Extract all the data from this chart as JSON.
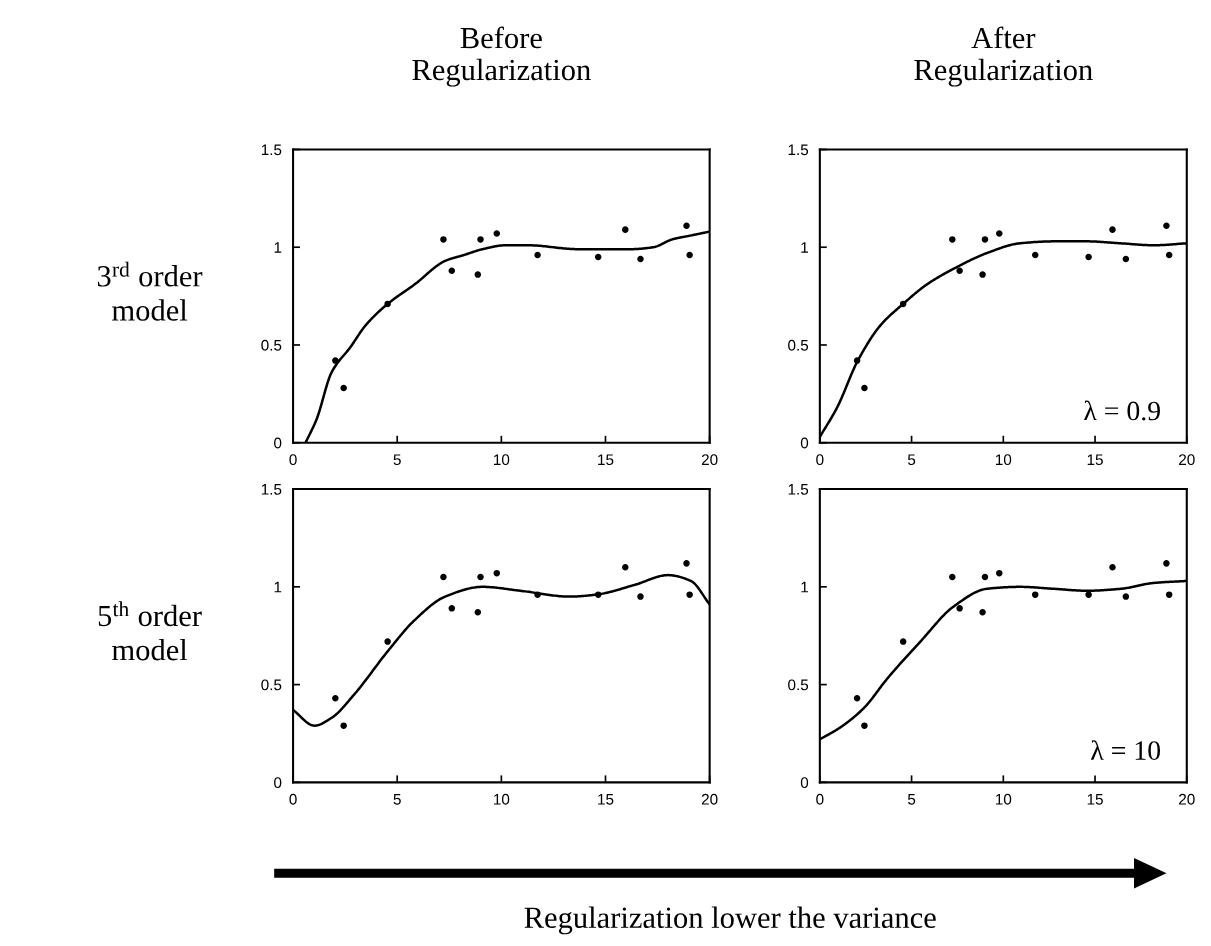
{
  "chart_data": [
    {
      "type": "scatter",
      "title": "Before\nRegularization",
      "ylabel": "3$^{rd}$ order\nmodel",
      "xlim": [
        0,
        20
      ],
      "ylim": [
        0,
        1.5
      ],
      "xticks": [
        0,
        5,
        10,
        15,
        20
      ],
      "yticks": [
        0,
        0.5,
        1,
        1.5
      ],
      "grid": false,
      "series": [
        {
          "color": "#000000",
          "marker": "circle",
          "x": [
            2.03,
            2.43,
            4.54,
            7.22,
            7.62,
            8.87,
            9.0,
            9.78,
            11.74,
            14.65,
            15.95,
            16.68,
            18.89,
            19.04
          ],
          "values": [
            0.42,
            0.28,
            0.71,
            1.04,
            0.88,
            0.86,
            1.04,
            1.07,
            0.96,
            0.95,
            1.09,
            0.94,
            1.11,
            0.96
          ]
        },
        {
          "type": "line",
          "color": "#000000",
          "line_style": "solid",
          "x": [
            0.6,
            1.13,
            1.85,
            2.76,
            3.48,
            4.54,
            5.84,
            7.3,
            8.2,
            9.1,
            10.2,
            11.3,
            13.65,
            14.9,
            16.2,
            17.3,
            18.2,
            19.1,
            20
          ],
          "values": [
            0,
            0.12,
            0.36,
            0.49,
            0.6,
            0.71,
            0.81,
            0.93,
            0.96,
            0.99,
            1.01,
            1.01,
            0.99,
            0.99,
            0.99,
            1.0,
            1.04,
            1.06,
            1.08
          ]
        }
      ]
    },
    {
      "type": "scatter",
      "title": "After\nRegularization",
      "xlim": [
        0,
        20
      ],
      "ylim": [
        0,
        1.5
      ],
      "xticks": [
        0,
        5,
        10,
        15,
        20
      ],
      "yticks": [
        0,
        0.5,
        1,
        1.5
      ],
      "grid": false,
      "annotations": [
        "λ = 0.9"
      ],
      "series": [
        {
          "color": "#000000",
          "marker": "circle",
          "x": [
            2.03,
            2.43,
            4.54,
            7.22,
            7.62,
            8.87,
            9.0,
            9.78,
            11.74,
            14.65,
            15.95,
            16.68,
            18.89,
            19.04
          ],
          "values": [
            0.42,
            0.28,
            0.71,
            1.04,
            0.88,
            0.86,
            1.04,
            1.07,
            0.96,
            0.95,
            1.09,
            0.94,
            1.11,
            0.96
          ]
        },
        {
          "type": "line",
          "color": "#000000",
          "line_style": "solid",
          "x": [
            0,
            0.94,
            2.07,
            3.3,
            4.54,
            5.84,
            7.3,
            9.1,
            10.9,
            12.74,
            14.56,
            16.4,
            18.2,
            20
          ],
          "values": [
            0.03,
            0.18,
            0.42,
            0.6,
            0.71,
            0.81,
            0.89,
            0.97,
            1.02,
            1.03,
            1.03,
            1.02,
            1.01,
            1.02
          ]
        }
      ]
    },
    {
      "type": "scatter",
      "ylabel": "5$^{th}$ order\nmodel",
      "xlim": [
        0,
        20
      ],
      "ylim": [
        0,
        1.5
      ],
      "xticks": [
        0,
        5,
        10,
        15,
        20
      ],
      "yticks": [
        0,
        0.5,
        1,
        1.5
      ],
      "grid": false,
      "series": [
        {
          "color": "#000000",
          "marker": "circle",
          "x": [
            2.03,
            2.43,
            4.54,
            7.22,
            7.62,
            8.87,
            9.0,
            9.78,
            11.74,
            14.65,
            15.95,
            16.68,
            18.89,
            19.04
          ],
          "values": [
            0.43,
            0.29,
            0.72,
            1.05,
            0.89,
            0.87,
            1.05,
            1.07,
            0.96,
            0.96,
            1.1,
            0.95,
            1.12,
            0.96
          ]
        },
        {
          "type": "line",
          "color": "#000000",
          "line_style": "solid",
          "x": [
            0,
            1.03,
            1.85,
            2.94,
            4.54,
            5.84,
            7.3,
            9.1,
            10.9,
            13.3,
            14.55,
            16.4,
            18.0,
            19.1,
            20
          ],
          "values": [
            0.37,
            0.29,
            0.33,
            0.45,
            0.67,
            0.83,
            0.95,
            1.0,
            0.98,
            0.95,
            0.96,
            1.01,
            1.06,
            1.03,
            0.91
          ]
        }
      ]
    },
    {
      "type": "scatter",
      "xlim": [
        0,
        20
      ],
      "ylim": [
        0,
        1.5
      ],
      "xticks": [
        0,
        5,
        10,
        15,
        20
      ],
      "yticks": [
        0,
        0.5,
        1,
        1.5
      ],
      "grid": false,
      "annotations": [
        "λ = 10",
        "Regularization lower the variance"
      ],
      "series": [
        {
          "color": "#000000",
          "marker": "circle",
          "x": [
            2.03,
            2.43,
            4.54,
            7.22,
            7.62,
            8.87,
            9.0,
            9.78,
            11.74,
            14.65,
            15.95,
            16.68,
            18.89,
            19.04
          ],
          "values": [
            0.43,
            0.29,
            0.72,
            1.05,
            0.89,
            0.87,
            1.05,
            1.07,
            0.96,
            0.96,
            1.1,
            0.95,
            1.12,
            0.96
          ]
        },
        {
          "type": "line",
          "color": "#000000",
          "line_style": "solid",
          "x": [
            0,
            1.1,
            2.4,
            3.67,
            5.48,
            7.3,
            9.1,
            10.9,
            12.74,
            14.56,
            16.4,
            18.2,
            20
          ],
          "values": [
            0.22,
            0.28,
            0.38,
            0.53,
            0.72,
            0.9,
            0.99,
            1.0,
            0.99,
            0.98,
            0.99,
            1.02,
            1.03
          ]
        }
      ]
    }
  ]
}
